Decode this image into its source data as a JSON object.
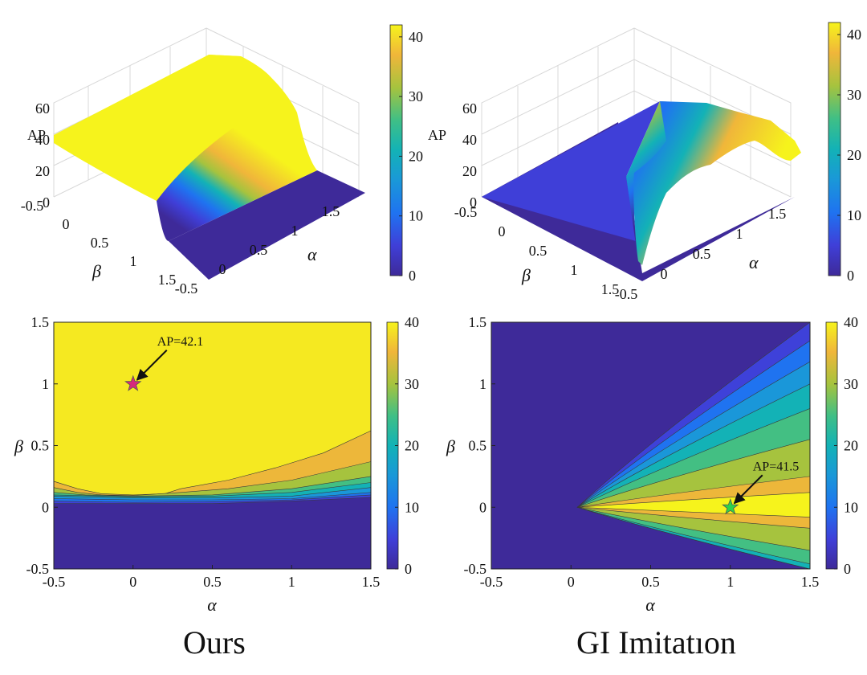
{
  "chart_data": [
    {
      "id": "ours-surface",
      "type": "surface3d",
      "zlabel": "AP",
      "xlabel": "α",
      "ylabel": "β",
      "x_range": [
        -0.5,
        1.5
      ],
      "y_range": [
        -0.5,
        1.5
      ],
      "z_range": [
        0,
        60
      ],
      "x_ticks": [
        "-0.5",
        "0",
        "0.5",
        "1",
        "1.5"
      ],
      "y_ticks": [
        "-0.5",
        "0",
        "0.5",
        "1",
        "1.5"
      ],
      "z_ticks": [
        "0",
        "20",
        "40",
        "60"
      ],
      "colorbar": {
        "ticks": [
          "0",
          "10",
          "20",
          "30",
          "40"
        ],
        "range": [
          0,
          42
        ]
      },
      "plateau_ap": 42,
      "low_ap": 0,
      "transition_beta": 0.05
    },
    {
      "id": "gi-surface",
      "type": "surface3d",
      "zlabel": "AP",
      "xlabel": "α",
      "ylabel": "β",
      "x_range": [
        -0.5,
        1.5
      ],
      "y_range": [
        -0.5,
        1.5
      ],
      "z_range": [
        0,
        60
      ],
      "x_ticks": [
        "-0.5",
        "0",
        "0.5",
        "1",
        "1.5"
      ],
      "y_ticks": [
        "-0.5",
        "0",
        "0.5",
        "1",
        "1.5"
      ],
      "z_ticks": [
        "0",
        "20",
        "40",
        "60"
      ],
      "colorbar": {
        "ticks": [
          "0",
          "10",
          "20",
          "30",
          "40"
        ],
        "range": [
          0,
          42
        ]
      }
    },
    {
      "id": "ours-contour",
      "type": "contour",
      "xlabel": "α",
      "ylabel": "β",
      "xlim": [
        -0.5,
        1.5
      ],
      "ylim": [
        -0.5,
        1.5
      ],
      "x_ticks": [
        "-0.5",
        "0",
        "0.5",
        "1",
        "1.5"
      ],
      "y_ticks": [
        "-0.5",
        "0",
        "0.5",
        "1",
        "1.5"
      ],
      "colorbar": {
        "ticks": [
          "0",
          "10",
          "20",
          "30",
          "40"
        ],
        "range": [
          0,
          40
        ]
      },
      "boundaries": [
        {
          "level": 35,
          "points": [
            [
              -0.5,
              0.21
            ],
            [
              -0.35,
              0.15
            ],
            [
              -0.2,
              0.11
            ],
            [
              0.0,
              0.1
            ],
            [
              0.2,
              0.11
            ],
            [
              0.3,
              0.15
            ],
            [
              0.6,
              0.22
            ],
            [
              0.9,
              0.32
            ],
            [
              1.2,
              0.44
            ],
            [
              1.5,
              0.62
            ]
          ]
        },
        {
          "level": 30,
          "points": [
            [
              -0.5,
              0.16
            ],
            [
              -0.35,
              0.12
            ],
            [
              -0.2,
              0.1
            ],
            [
              0.0,
              0.095
            ],
            [
              0.3,
              0.12
            ],
            [
              0.6,
              0.15
            ],
            [
              1.0,
              0.22
            ],
            [
              1.5,
              0.37
            ]
          ]
        },
        {
          "level": 25,
          "points": [
            [
              -0.5,
              0.12
            ],
            [
              -0.3,
              0.1
            ],
            [
              0.0,
              0.09
            ],
            [
              0.5,
              0.1
            ],
            [
              1.0,
              0.15
            ],
            [
              1.5,
              0.25
            ]
          ]
        },
        {
          "level": 20,
          "points": [
            [
              -0.5,
              0.1
            ],
            [
              0.0,
              0.085
            ],
            [
              0.5,
              0.09
            ],
            [
              1.0,
              0.12
            ],
            [
              1.5,
              0.2
            ]
          ]
        },
        {
          "level": 15,
          "points": [
            [
              -0.5,
              0.09
            ],
            [
              0.0,
              0.075
            ],
            [
              0.5,
              0.075
            ],
            [
              1.0,
              0.09
            ],
            [
              1.5,
              0.16
            ]
          ]
        },
        {
          "level": 10,
          "points": [
            [
              -0.5,
              0.07
            ],
            [
              0.0,
              0.06
            ],
            [
              0.5,
              0.06
            ],
            [
              1.0,
              0.07
            ],
            [
              1.5,
              0.12
            ]
          ]
        },
        {
          "level": 5,
          "points": [
            [
              -0.5,
              0.05
            ],
            [
              0.0,
              0.04
            ],
            [
              0.5,
              0.045
            ],
            [
              1.0,
              0.06
            ],
            [
              1.5,
              0.1
            ]
          ]
        }
      ],
      "marker": {
        "alpha": 0,
        "beta": 1,
        "color": "#d6297c",
        "label": "AP=42.1"
      }
    },
    {
      "id": "gi-contour",
      "type": "contour",
      "xlabel": "α",
      "ylabel": "β",
      "xlim": [
        -0.5,
        1.5
      ],
      "ylim": [
        -0.5,
        1.5
      ],
      "x_ticks": [
        "-0.5",
        "0",
        "0.5",
        "1",
        "1.5"
      ],
      "y_ticks": [
        "-0.5",
        "0",
        "0.5",
        "1",
        "1.5"
      ],
      "colorbar": {
        "ticks": [
          "0",
          "10",
          "20",
          "30",
          "40"
        ],
        "range": [
          0,
          40
        ]
      },
      "wedge_apex": [
        0.04,
        0.0
      ],
      "wedges": [
        {
          "level": 5,
          "upper_end": 1.5,
          "lower_end": -0.5
        },
        {
          "level": 10,
          "upper_end": 1.35,
          "lower_end": -0.5
        },
        {
          "level": 15,
          "upper_end": 1.18,
          "lower_end": -0.5
        },
        {
          "level": 20,
          "upper_end": 1.0,
          "lower_end": -0.5
        },
        {
          "level": 25,
          "upper_end": 0.8,
          "lower_end": -0.46
        },
        {
          "level": 30,
          "upper_end": 0.55,
          "lower_end": -0.35
        },
        {
          "level": 35,
          "upper_end": 0.25,
          "lower_end": -0.17
        },
        {
          "level": 40,
          "upper_end": 0.12,
          "lower_end": -0.08
        }
      ],
      "marker": {
        "alpha": 1,
        "beta": 0,
        "color": "#2dd44a",
        "label": "AP=41.5"
      }
    }
  ],
  "captions": {
    "left": "Ours",
    "right": "GI Imitatıon"
  }
}
